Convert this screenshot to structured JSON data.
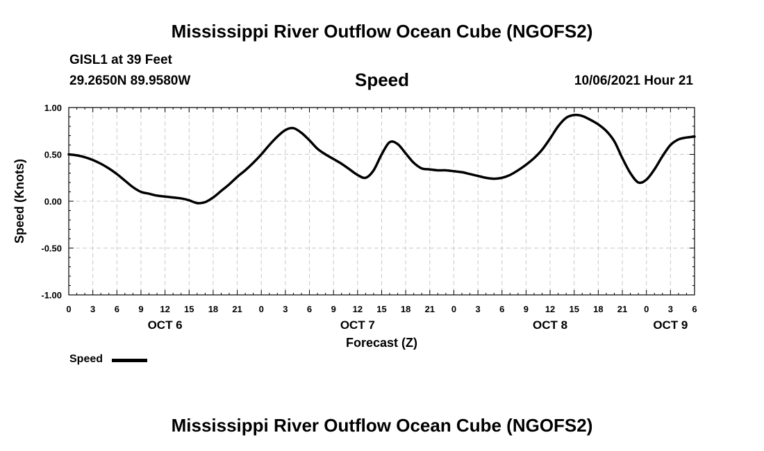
{
  "header": {
    "title": "Mississippi River Outflow Ocean Cube (NGOFS2)",
    "station": "GISL1 at 39 Feet",
    "coordinates": "29.2650N  89.9580W",
    "variable": "Speed",
    "datetime": "10/06/2021 Hour 21"
  },
  "legend": {
    "label": "Speed"
  },
  "footer": {
    "title": "Mississippi River Outflow Ocean Cube (NGOFS2)"
  },
  "colors": {
    "line": "#000000",
    "grid": "#c8c8c8",
    "axis": "#000000"
  },
  "chart_data": {
    "type": "line",
    "title": "Speed",
    "xlabel": "Forecast (Z)",
    "ylabel": "Speed (Knots)",
    "xlim": [
      0,
      78
    ],
    "ylim": [
      -1.0,
      1.0
    ],
    "grid": true,
    "x_tick_labels": [
      "0",
      "3",
      "6",
      "9",
      "12",
      "15",
      "18",
      "21",
      "0",
      "3",
      "6",
      "9",
      "12",
      "15",
      "18",
      "21",
      "0",
      "3",
      "6",
      "9",
      "12",
      "15",
      "18",
      "21",
      "0",
      "3",
      "6"
    ],
    "y_ticks": [
      -1.0,
      -0.5,
      0.0,
      0.5,
      1.0
    ],
    "y_tick_labels": [
      "-1.00",
      "-0.50",
      "0.00",
      "0.50",
      "1.00"
    ],
    "day_labels": [
      {
        "label": "OCT 6",
        "x": 12
      },
      {
        "label": "OCT 7",
        "x": 36
      },
      {
        "label": "OCT 8",
        "x": 60
      },
      {
        "label": "OCT 9",
        "x": 75
      }
    ],
    "legend_position": "bottom-left",
    "series": [
      {
        "name": "Speed",
        "x": [
          0,
          1,
          2,
          3,
          4,
          5,
          6,
          7,
          8,
          9,
          10,
          11,
          12,
          13,
          14,
          15,
          16,
          17,
          18,
          19,
          20,
          21,
          22,
          23,
          24,
          25,
          26,
          27,
          28,
          29,
          30,
          31,
          32,
          33,
          34,
          35,
          36,
          37,
          38,
          39,
          40,
          41,
          42,
          43,
          44,
          45,
          46,
          47,
          48,
          49,
          50,
          51,
          52,
          53,
          54,
          55,
          56,
          57,
          58,
          59,
          60,
          61,
          62,
          63,
          64,
          65,
          66,
          67,
          68,
          69,
          70,
          71,
          72,
          73,
          74,
          75,
          76,
          77,
          78
        ],
        "values": [
          0.5,
          0.49,
          0.47,
          0.44,
          0.4,
          0.35,
          0.29,
          0.22,
          0.15,
          0.1,
          0.08,
          0.06,
          0.05,
          0.04,
          0.03,
          0.01,
          -0.02,
          -0.01,
          0.04,
          0.11,
          0.18,
          0.26,
          0.33,
          0.41,
          0.5,
          0.6,
          0.69,
          0.76,
          0.78,
          0.73,
          0.65,
          0.56,
          0.5,
          0.45,
          0.4,
          0.34,
          0.28,
          0.25,
          0.33,
          0.5,
          0.63,
          0.61,
          0.51,
          0.41,
          0.35,
          0.34,
          0.33,
          0.33,
          0.32,
          0.31,
          0.29,
          0.27,
          0.25,
          0.24,
          0.25,
          0.28,
          0.33,
          0.39,
          0.46,
          0.55,
          0.67,
          0.8,
          0.89,
          0.92,
          0.91,
          0.87,
          0.82,
          0.75,
          0.64,
          0.46,
          0.3,
          0.2,
          0.23,
          0.34,
          0.48,
          0.6,
          0.66,
          0.68,
          0.69
        ]
      }
    ]
  }
}
